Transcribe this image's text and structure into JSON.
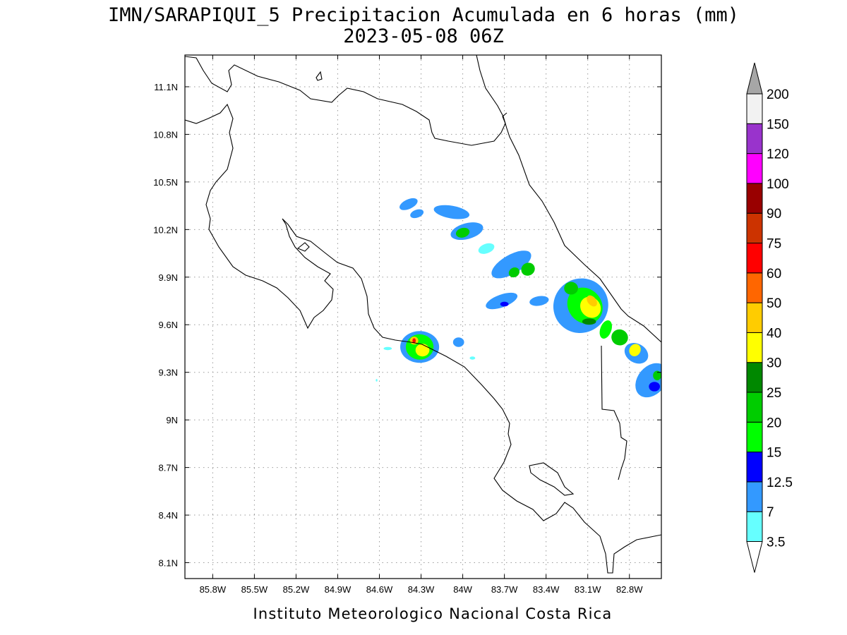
{
  "title": {
    "line1": "IMN/SARAPIQUI_5 Precipitacion Acumulada en 6 horas (mm)",
    "line2": "2023-05-08 06Z"
  },
  "footer": "Instituto Meteorologico Nacional Costa Rica",
  "map": {
    "lon_range": [
      -86.0,
      -82.57
    ],
    "lat_range": [
      8.0,
      11.3
    ],
    "lon_ticks": [
      {
        "value": -85.8,
        "label": "85.8W"
      },
      {
        "value": -85.5,
        "label": "85.5W"
      },
      {
        "value": -85.2,
        "label": "85.2W"
      },
      {
        "value": -84.9,
        "label": "84.9W"
      },
      {
        "value": -84.6,
        "label": "84.6W"
      },
      {
        "value": -84.3,
        "label": "84.3W"
      },
      {
        "value": -84.0,
        "label": "84W"
      },
      {
        "value": -83.7,
        "label": "83.7W"
      },
      {
        "value": -83.4,
        "label": "83.4W"
      },
      {
        "value": -83.1,
        "label": "83.1W"
      },
      {
        "value": -82.8,
        "label": "82.8W"
      }
    ],
    "lat_ticks": [
      {
        "value": 11.1,
        "label": "11.1N"
      },
      {
        "value": 10.8,
        "label": "10.8N"
      },
      {
        "value": 10.5,
        "label": "10.5N"
      },
      {
        "value": 10.2,
        "label": "10.2N"
      },
      {
        "value": 9.9,
        "label": "9.9N"
      },
      {
        "value": 9.6,
        "label": "9.6N"
      },
      {
        "value": 9.3,
        "label": "9.3N"
      },
      {
        "value": 9.0,
        "label": "9N"
      },
      {
        "value": 8.7,
        "label": "8.7N"
      },
      {
        "value": 8.4,
        "label": "8.4N"
      },
      {
        "value": 8.1,
        "label": "8.1N"
      }
    ],
    "grid": "dotted"
  },
  "colorbar": {
    "levels": [
      "3.5",
      "7",
      "12.5",
      "15",
      "20",
      "25",
      "30",
      "40",
      "50",
      "60",
      "75",
      "90",
      "100",
      "120",
      "150",
      "200"
    ],
    "colors": [
      "#66ffff",
      "#3399ff",
      "#0000ff",
      "#00ff00",
      "#00cc00",
      "#008800",
      "#ffff00",
      "#ffcc00",
      "#ff6600",
      "#ff0000",
      "#cc3300",
      "#990000",
      "#ff00ff",
      "#9933cc",
      "#f2f2f2"
    ],
    "upper_arrow_color": "#a6a6a6",
    "lower_arrow_color": "#ffffff"
  },
  "precipitation_cells": [
    {
      "lon": -84.39,
      "lat": 10.36,
      "rx": 0.07,
      "ry": 0.03,
      "level": 1,
      "rot": -25
    },
    {
      "lon": -84.33,
      "lat": 10.3,
      "rx": 0.05,
      "ry": 0.025,
      "level": 1,
      "rot": -20
    },
    {
      "lon": -84.08,
      "lat": 10.31,
      "rx": 0.13,
      "ry": 0.04,
      "level": 1,
      "rot": 10
    },
    {
      "lon": -83.97,
      "lat": 10.19,
      "rx": 0.12,
      "ry": 0.05,
      "level": 1,
      "rot": -15
    },
    {
      "lon": -84.0,
      "lat": 10.18,
      "rx": 0.05,
      "ry": 0.03,
      "level": 4,
      "rot": -15
    },
    {
      "lon": -83.83,
      "lat": 10.08,
      "rx": 0.06,
      "ry": 0.03,
      "level": 0,
      "rot": -20
    },
    {
      "lon": -83.65,
      "lat": 9.98,
      "rx": 0.16,
      "ry": 0.06,
      "level": 1,
      "rot": -30
    },
    {
      "lon": -83.53,
      "lat": 9.95,
      "rx": 0.05,
      "ry": 0.04,
      "level": 4,
      "rot": -30
    },
    {
      "lon": -83.63,
      "lat": 9.93,
      "rx": 0.04,
      "ry": 0.03,
      "level": 4,
      "rot": -30
    },
    {
      "lon": -83.72,
      "lat": 9.75,
      "rx": 0.12,
      "ry": 0.04,
      "level": 1,
      "rot": -20
    },
    {
      "lon": -83.7,
      "lat": 9.73,
      "rx": 0.03,
      "ry": 0.015,
      "level": 2,
      "rot": 0
    },
    {
      "lon": -83.45,
      "lat": 9.75,
      "rx": 0.07,
      "ry": 0.03,
      "level": 1,
      "rot": -10
    },
    {
      "lon": -83.15,
      "lat": 9.72,
      "rx": 0.2,
      "ry": 0.17,
      "level": 1,
      "rot": -40
    },
    {
      "lon": -83.12,
      "lat": 9.72,
      "rx": 0.12,
      "ry": 0.12,
      "level": 3,
      "rot": -40
    },
    {
      "lon": -83.08,
      "lat": 9.71,
      "rx": 0.07,
      "ry": 0.07,
      "level": 6,
      "rot": -40
    },
    {
      "lon": -83.07,
      "lat": 9.75,
      "rx": 0.03,
      "ry": 0.04,
      "level": 7,
      "rot": -40
    },
    {
      "lon": -83.09,
      "lat": 9.62,
      "rx": 0.05,
      "ry": 0.02,
      "level": 5,
      "rot": 0
    },
    {
      "lon": -83.22,
      "lat": 9.83,
      "rx": 0.05,
      "ry": 0.04,
      "level": 4,
      "rot": 0
    },
    {
      "lon": -82.97,
      "lat": 9.57,
      "rx": 0.04,
      "ry": 0.06,
      "level": 3,
      "rot": 20
    },
    {
      "lon": -82.87,
      "lat": 9.52,
      "rx": 0.06,
      "ry": 0.05,
      "level": 4,
      "rot": 20
    },
    {
      "lon": -82.75,
      "lat": 9.42,
      "rx": 0.09,
      "ry": 0.06,
      "level": 1,
      "rot": 30
    },
    {
      "lon": -82.76,
      "lat": 9.44,
      "rx": 0.04,
      "ry": 0.04,
      "level": 6,
      "rot": 30
    },
    {
      "lon": -82.64,
      "lat": 9.25,
      "rx": 0.1,
      "ry": 0.12,
      "level": 1,
      "rot": 40
    },
    {
      "lon": -82.6,
      "lat": 9.28,
      "rx": 0.03,
      "ry": 0.03,
      "level": 4,
      "rot": 0
    },
    {
      "lon": -82.62,
      "lat": 9.21,
      "rx": 0.04,
      "ry": 0.03,
      "level": 2,
      "rot": 0
    },
    {
      "lon": -84.31,
      "lat": 9.46,
      "rx": 0.14,
      "ry": 0.1,
      "level": 1,
      "rot": 0
    },
    {
      "lon": -84.31,
      "lat": 9.46,
      "rx": 0.1,
      "ry": 0.08,
      "level": 3,
      "rot": 0
    },
    {
      "lon": -84.29,
      "lat": 9.44,
      "rx": 0.05,
      "ry": 0.04,
      "level": 6,
      "rot": 0
    },
    {
      "lon": -84.35,
      "lat": 9.5,
      "rx": 0.03,
      "ry": 0.025,
      "level": 7,
      "rot": 0
    },
    {
      "lon": -84.35,
      "lat": 9.5,
      "rx": 0.012,
      "ry": 0.015,
      "level": 9,
      "rot": 0
    },
    {
      "lon": -84.03,
      "lat": 9.49,
      "rx": 0.04,
      "ry": 0.03,
      "level": 1,
      "rot": 0
    },
    {
      "lon": -84.54,
      "lat": 9.45,
      "rx": 0.03,
      "ry": 0.01,
      "level": 0,
      "rot": 0
    },
    {
      "lon": -83.93,
      "lat": 9.39,
      "rx": 0.02,
      "ry": 0.01,
      "level": 0,
      "rot": 0
    },
    {
      "lon": -84.62,
      "lat": 9.25,
      "rx": 0.006,
      "ry": 0.008,
      "level": 0,
      "rot": 0
    }
  ]
}
